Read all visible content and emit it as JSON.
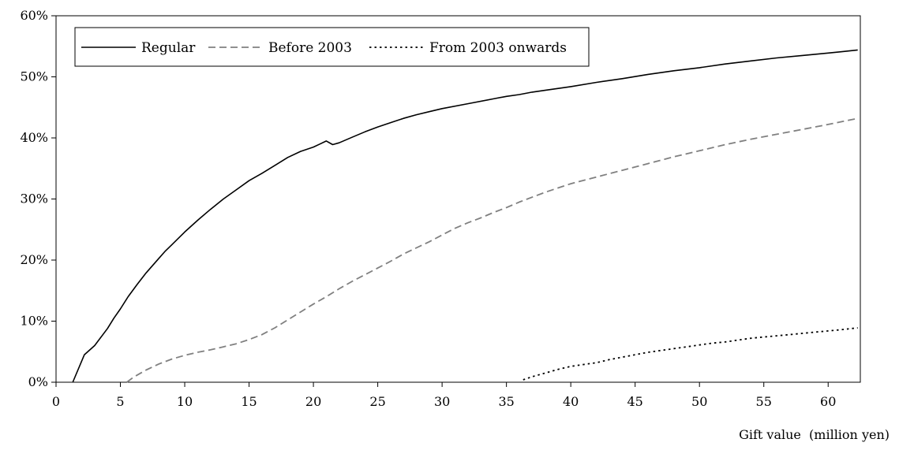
{
  "chart_data": {
    "type": "line",
    "title": "",
    "xlabel": "Gift value  (million yen)",
    "ylabel": "",
    "xlim": [
      0,
      62.5
    ],
    "ylim": [
      0,
      60
    ],
    "grid": false,
    "legend_position": "top-left",
    "x_ticks": [
      0,
      5,
      10,
      15,
      20,
      25,
      30,
      35,
      40,
      45,
      50,
      55,
      60
    ],
    "x_tick_labels": [
      "0",
      "5",
      "10",
      "15",
      "20",
      "25",
      "30",
      "35",
      "40",
      "45",
      "50",
      "55",
      "60"
    ],
    "y_ticks": [
      0,
      10,
      20,
      30,
      40,
      50,
      60
    ],
    "y_tick_labels": [
      "0%",
      "10%",
      "20%",
      "30%",
      "40%",
      "50%",
      "60%"
    ],
    "series": [
      {
        "name": "Regular",
        "color": "#000000",
        "dash": "solid",
        "points": [
          [
            1.3,
            0
          ],
          [
            2.2,
            4.5
          ],
          [
            3,
            6
          ],
          [
            4,
            8.8
          ],
          [
            4.5,
            10.5
          ],
          [
            5,
            12
          ],
          [
            5.6,
            14
          ],
          [
            6.3,
            16
          ],
          [
            7,
            17.9
          ],
          [
            8,
            20.3
          ],
          [
            8.5,
            21.5
          ],
          [
            9,
            22.5
          ],
          [
            10,
            24.6
          ],
          [
            11,
            26.5
          ],
          [
            12,
            28.3
          ],
          [
            13,
            30
          ],
          [
            14,
            31.5
          ],
          [
            15,
            33
          ],
          [
            16,
            34.2
          ],
          [
            17,
            35.5
          ],
          [
            18,
            36.8
          ],
          [
            19,
            37.8
          ],
          [
            20,
            38.5
          ],
          [
            20.5,
            39
          ],
          [
            21,
            39.5
          ],
          [
            21.5,
            38.9
          ],
          [
            22,
            39.2
          ],
          [
            23,
            40.1
          ],
          [
            24,
            41
          ],
          [
            25,
            41.8
          ],
          [
            26,
            42.5
          ],
          [
            27,
            43.2
          ],
          [
            28,
            43.8
          ],
          [
            29,
            44.3
          ],
          [
            30,
            44.8
          ],
          [
            32,
            45.6
          ],
          [
            34,
            46.4
          ],
          [
            35,
            46.8
          ],
          [
            36,
            47.1
          ],
          [
            37,
            47.5
          ],
          [
            38,
            47.8
          ],
          [
            40,
            48.4
          ],
          [
            42,
            49.1
          ],
          [
            44,
            49.7
          ],
          [
            46,
            50.4
          ],
          [
            48,
            51
          ],
          [
            50,
            51.5
          ],
          [
            52,
            52.1
          ],
          [
            54,
            52.6
          ],
          [
            56,
            53.1
          ],
          [
            58,
            53.5
          ],
          [
            60,
            53.9
          ],
          [
            61,
            54.1
          ],
          [
            62.3,
            54.4
          ]
        ]
      },
      {
        "name": "Before 2003",
        "color": "#808080",
        "dash": "dashed",
        "points": [
          [
            5.5,
            0
          ],
          [
            6,
            0.8
          ],
          [
            7,
            2
          ],
          [
            8,
            3
          ],
          [
            9,
            3.8
          ],
          [
            10,
            4.4
          ],
          [
            11,
            4.9
          ],
          [
            12,
            5.3
          ],
          [
            13,
            5.8
          ],
          [
            14,
            6.3
          ],
          [
            15,
            7
          ],
          [
            16,
            7.8
          ],
          [
            17,
            8.9
          ],
          [
            18,
            10.2
          ],
          [
            19,
            11.5
          ],
          [
            20,
            12.8
          ],
          [
            21,
            14
          ],
          [
            22,
            15.3
          ],
          [
            23,
            16.5
          ],
          [
            24,
            17.6
          ],
          [
            25,
            18.7
          ],
          [
            26,
            19.8
          ],
          [
            27,
            21
          ],
          [
            28,
            22
          ],
          [
            29,
            23
          ],
          [
            30,
            24.1
          ],
          [
            31,
            25.2
          ],
          [
            32,
            26.1
          ],
          [
            33,
            26.9
          ],
          [
            34,
            27.8
          ],
          [
            35,
            28.6
          ],
          [
            36,
            29.5
          ],
          [
            37,
            30.3
          ],
          [
            38,
            31.1
          ],
          [
            39,
            31.8
          ],
          [
            40,
            32.5
          ],
          [
            42,
            33.6
          ],
          [
            44,
            34.7
          ],
          [
            46,
            35.8
          ],
          [
            48,
            36.9
          ],
          [
            50,
            37.9
          ],
          [
            52,
            38.9
          ],
          [
            54,
            39.8
          ],
          [
            56,
            40.6
          ],
          [
            58,
            41.4
          ],
          [
            60,
            42.2
          ],
          [
            62.3,
            43.2
          ]
        ]
      },
      {
        "name": "From 2003 onwards",
        "color": "#000000",
        "dash": "dotted",
        "points": [
          [
            36.3,
            0.4
          ],
          [
            37,
            0.9
          ],
          [
            38,
            1.5
          ],
          [
            39,
            2.1
          ],
          [
            40,
            2.6
          ],
          [
            41,
            2.9
          ],
          [
            42,
            3.2
          ],
          [
            43,
            3.7
          ],
          [
            44,
            4.1
          ],
          [
            45,
            4.5
          ],
          [
            46,
            4.9
          ],
          [
            47,
            5.2
          ],
          [
            48,
            5.5
          ],
          [
            49,
            5.8
          ],
          [
            50,
            6.1
          ],
          [
            51,
            6.4
          ],
          [
            52,
            6.6
          ],
          [
            53,
            6.9
          ],
          [
            54,
            7.2
          ],
          [
            55,
            7.4
          ],
          [
            56,
            7.6
          ],
          [
            57,
            7.8
          ],
          [
            58,
            8
          ],
          [
            59,
            8.2
          ],
          [
            60,
            8.4
          ],
          [
            61,
            8.6
          ],
          [
            62.3,
            8.9
          ]
        ]
      }
    ]
  }
}
